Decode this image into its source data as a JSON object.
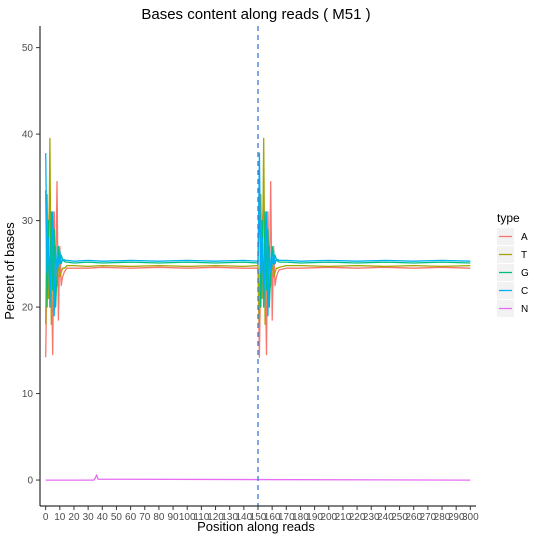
{
  "chart_data": {
    "type": "line",
    "title": "Bases content along reads ( M51 )",
    "xlabel": "Position along reads",
    "ylabel": "Percent of bases",
    "xlim": [
      -4,
      304
    ],
    "ylim": [
      -3,
      52.5
    ],
    "xticks": [
      0,
      10,
      20,
      30,
      40,
      50,
      60,
      70,
      80,
      90,
      100,
      110,
      120,
      130,
      140,
      150,
      160,
      170,
      180,
      190,
      200,
      210,
      220,
      230,
      240,
      250,
      260,
      270,
      280,
      290,
      300
    ],
    "yticks": [
      0,
      10,
      20,
      30,
      40,
      50
    ],
    "grid": false,
    "legend_position": "right",
    "legend_title": "type",
    "read_boundary_x": 150,
    "series": [
      {
        "name": "A",
        "color": "#F8766D",
        "x": [
          0,
          1,
          2,
          3,
          4,
          5,
          6,
          7,
          8,
          9,
          10,
          11,
          12,
          13,
          14,
          15,
          20,
          30,
          40,
          60,
          80,
          100,
          120,
          140,
          150,
          151,
          152,
          153,
          154,
          155,
          156,
          157,
          158,
          159,
          160,
          161,
          162,
          163,
          164,
          165,
          170,
          180,
          200,
          220,
          240,
          260,
          280,
          300
        ],
        "y": [
          14.2,
          26,
          29,
          33,
          25,
          14.5,
          31,
          22,
          34.5,
          18.5,
          27,
          22.5,
          23.5,
          24,
          24.3,
          24.5,
          24.5,
          24.5,
          24.6,
          24.5,
          24.6,
          24.5,
          24.6,
          24.5,
          24.5,
          14.2,
          26,
          29,
          33,
          25,
          14.5,
          31,
          22,
          34.5,
          18.5,
          27,
          22.5,
          23.5,
          24,
          24.3,
          24.5,
          24.5,
          24.6,
          24.5,
          24.6,
          24.5,
          24.6,
          24.5
        ]
      },
      {
        "name": "T",
        "color": "#A3A500",
        "x": [
          0,
          1,
          2,
          3,
          4,
          5,
          6,
          7,
          8,
          9,
          10,
          11,
          12,
          13,
          14,
          15,
          20,
          30,
          40,
          60,
          80,
          100,
          120,
          140,
          150,
          151,
          152,
          153,
          154,
          155,
          156,
          157,
          158,
          159,
          160,
          161,
          162,
          163,
          164,
          165,
          170,
          180,
          200,
          220,
          240,
          260,
          280,
          300
        ],
        "y": [
          18,
          33,
          21,
          39.5,
          18,
          27,
          24,
          22,
          22.5,
          25.5,
          23.5,
          24,
          24.5,
          24.5,
          24.6,
          24.8,
          24.8,
          24.7,
          24.8,
          24.7,
          24.8,
          24.7,
          24.8,
          24.7,
          24.8,
          18,
          33,
          21,
          39.5,
          18,
          27,
          24,
          22,
          22.5,
          25.5,
          23.5,
          24,
          24.5,
          24.5,
          24.6,
          24.8,
          24.8,
          24.7,
          24.8,
          24.7,
          24.8,
          24.7,
          24.8
        ]
      },
      {
        "name": "G",
        "color": "#00BF7D",
        "x": [
          0,
          1,
          2,
          3,
          4,
          5,
          6,
          7,
          8,
          9,
          10,
          11,
          12,
          13,
          14,
          15,
          20,
          30,
          40,
          60,
          80,
          100,
          120,
          140,
          150,
          151,
          152,
          153,
          154,
          155,
          156,
          157,
          158,
          159,
          160,
          161,
          162,
          163,
          164,
          165,
          170,
          180,
          200,
          220,
          240,
          260,
          280,
          300
        ],
        "y": [
          33.5,
          20,
          30,
          21,
          31,
          22,
          29,
          20,
          24,
          27,
          25,
          26,
          25.5,
          25.3,
          25.2,
          25.2,
          25.1,
          25.2,
          25.1,
          25.2,
          25.1,
          25.2,
          25.1,
          25.2,
          25.1,
          33.5,
          20,
          30,
          21,
          31,
          22,
          29,
          20,
          24,
          27,
          25,
          26,
          25.5,
          25.3,
          25.2,
          25.2,
          25.1,
          25.2,
          25.1,
          25.2,
          25.1,
          25.2,
          25.1
        ]
      },
      {
        "name": "C",
        "color": "#00B0F6",
        "x": [
          0,
          1,
          2,
          3,
          4,
          5,
          6,
          7,
          8,
          9,
          10,
          11,
          12,
          13,
          14,
          15,
          20,
          30,
          40,
          60,
          80,
          100,
          120,
          140,
          150,
          151,
          152,
          153,
          154,
          155,
          156,
          157,
          158,
          159,
          160,
          161,
          162,
          163,
          164,
          165,
          170,
          180,
          200,
          220,
          240,
          260,
          280,
          300
        ],
        "y": [
          37.8,
          24,
          28,
          20,
          26,
          31,
          19,
          27,
          24,
          25,
          26.5,
          25,
          25.5,
          25.5,
          25.4,
          25.4,
          25.3,
          25.4,
          25.3,
          25.4,
          25.3,
          25.4,
          25.3,
          25.4,
          25.3,
          37.8,
          24,
          28,
          20,
          26,
          31,
          19,
          27,
          24,
          25,
          26.5,
          25,
          25.5,
          25.5,
          25.4,
          25.4,
          25.3,
          25.4,
          25.3,
          25.4,
          25.3,
          25.4,
          25.3
        ]
      },
      {
        "name": "N",
        "color": "#E76BF3",
        "x": [
          0,
          34,
          35,
          36,
          37,
          300
        ],
        "y": [
          0,
          0,
          0.2,
          0.6,
          0.1,
          0
        ]
      }
    ]
  }
}
